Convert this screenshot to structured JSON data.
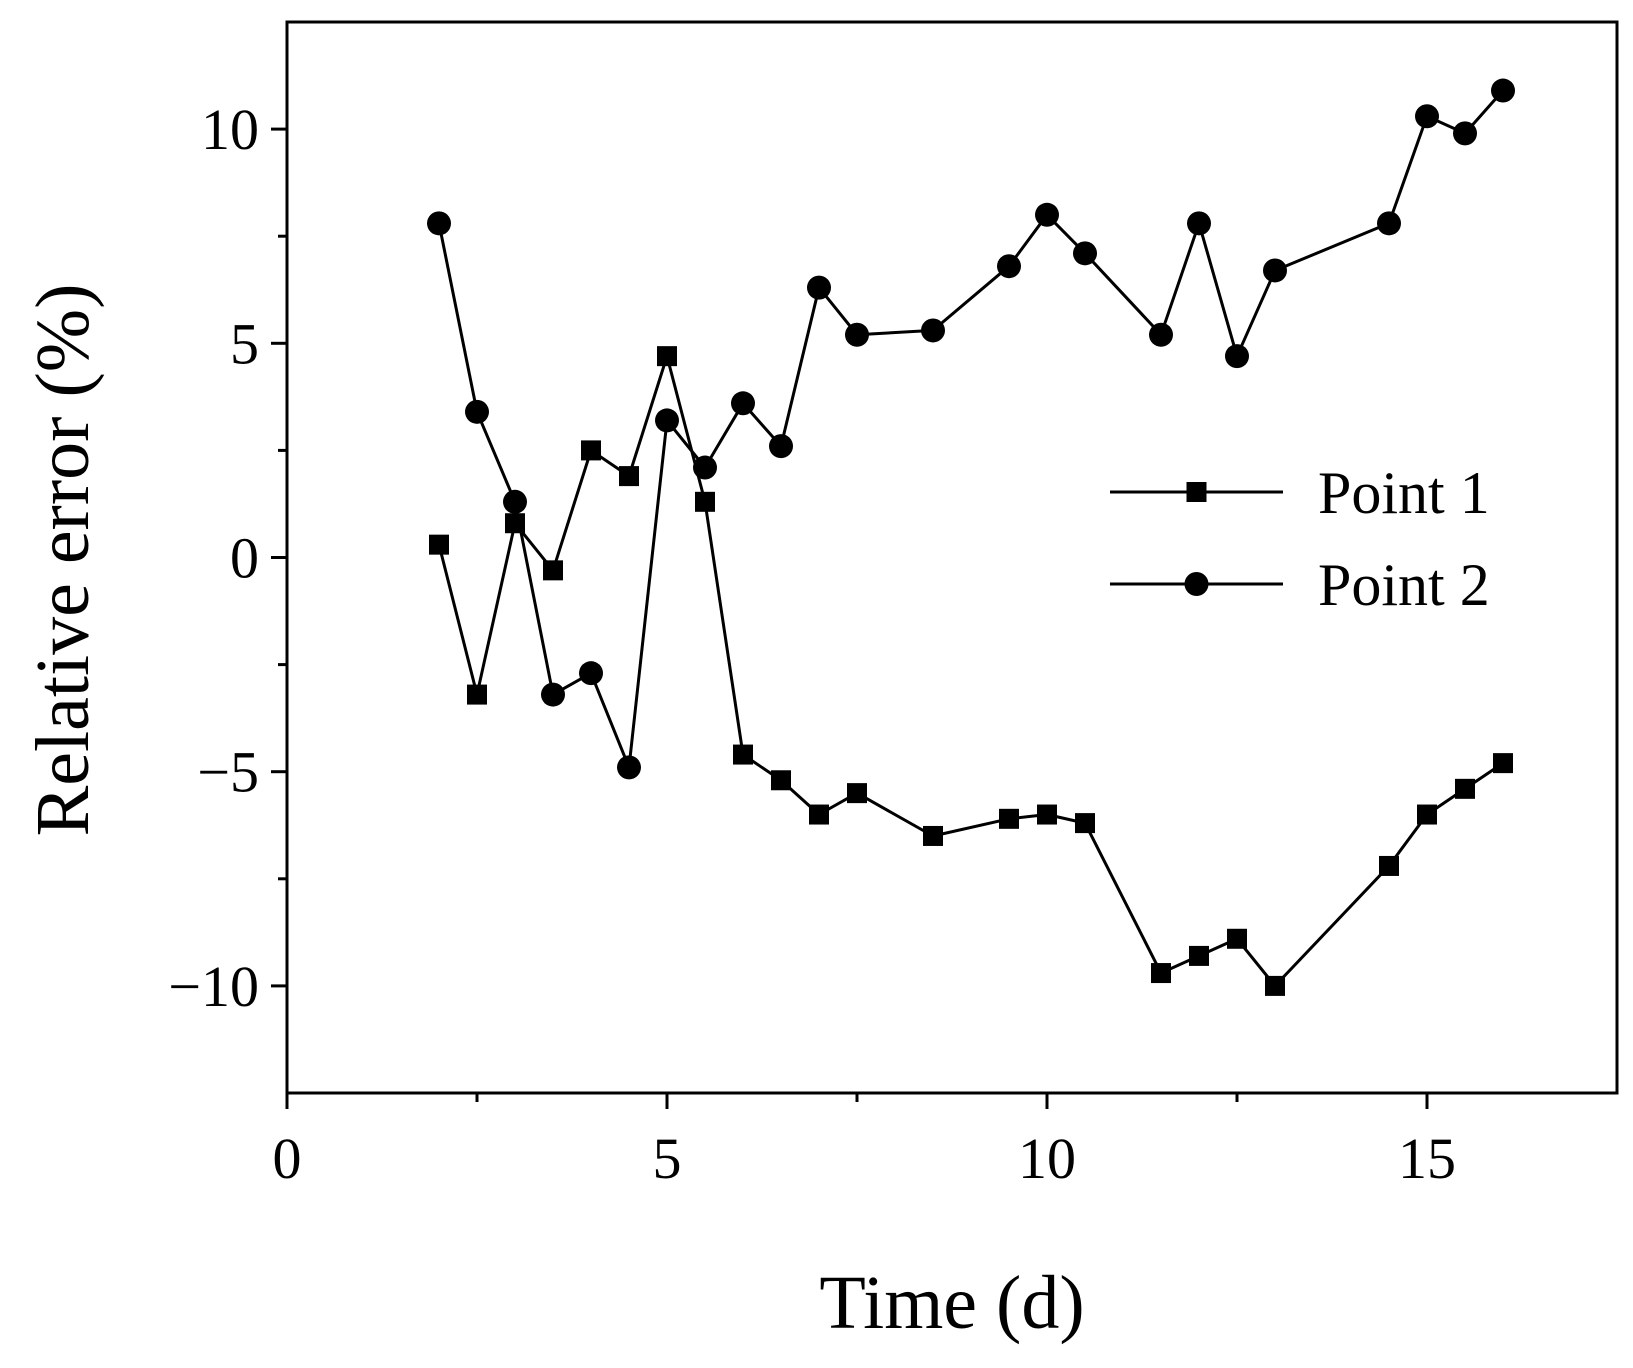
{
  "chart_data": {
    "type": "line",
    "title": "",
    "xlabel": "Time (d)",
    "ylabel": "Relative error (%)",
    "xlim": [
      0,
      17.5
    ],
    "ylim": [
      -12.5,
      12.5
    ],
    "x_ticks_major": [
      0,
      5,
      10,
      15
    ],
    "x_ticks_minor": [
      2.5,
      7.5,
      12.5
    ],
    "x_tick_labels": [
      "0",
      "5",
      "10",
      "15"
    ],
    "y_ticks_major": [
      -10,
      -5,
      0,
      5,
      10
    ],
    "y_ticks_minor": [
      -7.5,
      -2.5,
      2.5,
      7.5
    ],
    "y_tick_labels": [
      "−10",
      "−5",
      "0",
      "5",
      "10"
    ],
    "grid": false,
    "legend_position": "right-center",
    "series": [
      {
        "name": "Point 1",
        "marker": "square",
        "x": [
          2,
          2.5,
          3,
          3.5,
          4,
          4.5,
          5,
          5.5,
          6,
          6.5,
          7,
          7.5,
          8.5,
          9.5,
          10,
          10.5,
          11.5,
          12,
          12.5,
          13,
          14.5,
          15,
          15.5,
          16
        ],
        "y": [
          0.3,
          -3.2,
          0.8,
          -0.3,
          2.5,
          1.9,
          4.7,
          1.3,
          -4.6,
          -5.2,
          -6.0,
          -5.5,
          -6.5,
          -6.1,
          -6.0,
          -6.2,
          -9.7,
          -9.3,
          -8.9,
          -10.0,
          -7.2,
          -6.0,
          -5.4,
          -4.8
        ]
      },
      {
        "name": "Point 2",
        "marker": "circle",
        "x": [
          2,
          2.5,
          3,
          3.5,
          4,
          4.5,
          5,
          5.5,
          6,
          6.5,
          7,
          7.5,
          8.5,
          9.5,
          10,
          10.5,
          11.5,
          12,
          12.5,
          13,
          14.5,
          15,
          15.5,
          16
        ],
        "y": [
          7.8,
          3.4,
          1.3,
          -3.2,
          -2.7,
          -4.9,
          3.2,
          2.1,
          3.6,
          2.6,
          6.3,
          5.2,
          5.3,
          6.8,
          8.0,
          7.1,
          5.2,
          7.8,
          4.7,
          6.7,
          7.8,
          10.3,
          9.9,
          10.9
        ]
      }
    ]
  }
}
